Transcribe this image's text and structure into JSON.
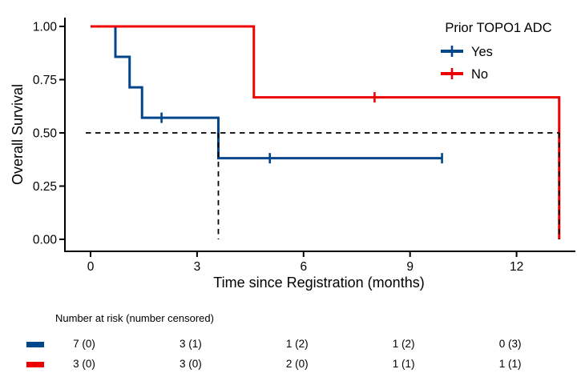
{
  "chart_data": {
    "type": "line",
    "subtype": "kaplan-meier-step",
    "title": "",
    "xlabel": "Time since Registration (months)",
    "ylabel": "Overall Survival",
    "xlim": [
      -0.7,
      13.8
    ],
    "ylim": [
      0,
      1
    ],
    "x_ticks": [
      0,
      3,
      6,
      9,
      12
    ],
    "y_ticks": [
      "0.00",
      "0.25",
      "0.50",
      "0.75",
      "1.00"
    ],
    "grid": false,
    "axis_color": "#000000",
    "legend": {
      "title": "Prior TOPO1 ADC",
      "position": "top-right"
    },
    "series": [
      {
        "name": "Yes",
        "color": "#00468B",
        "steps": [
          [
            0,
            1.0
          ],
          [
            0.7,
            0.857
          ],
          [
            1.1,
            0.714
          ],
          [
            1.45,
            0.571
          ],
          [
            3.6,
            0.381
          ]
        ],
        "end_time": 9.9,
        "censor_marks": [
          [
            2.0,
            0.571
          ],
          [
            5.05,
            0.381
          ],
          [
            9.9,
            0.381
          ]
        ]
      },
      {
        "name": "No",
        "color": "#ED0000",
        "steps": [
          [
            0,
            1.0
          ],
          [
            4.6,
            0.667
          ],
          [
            13.2,
            0.0
          ]
        ],
        "end_time": 13.2,
        "censor_marks": [
          [
            8.0,
            0.667
          ]
        ]
      }
    ],
    "reference_lines": {
      "style": "dashed",
      "color": "#000000",
      "median_horizontal": 0.5,
      "median_verticals": [
        3.6,
        13.2
      ]
    },
    "risk_table": {
      "title": "Number at risk (number censored)",
      "times": [
        0,
        3,
        6,
        9,
        12
      ],
      "rows": [
        {
          "name": "Yes",
          "color": "#00468B",
          "values": [
            "7 (0)",
            "3 (1)",
            "1 (2)",
            "1 (2)",
            "0 (3)"
          ]
        },
        {
          "name": "No",
          "color": "#ED0000",
          "values": [
            "3 (0)",
            "3 (0)",
            "2 (0)",
            "1 (1)",
            "1 (1)"
          ]
        }
      ]
    }
  }
}
